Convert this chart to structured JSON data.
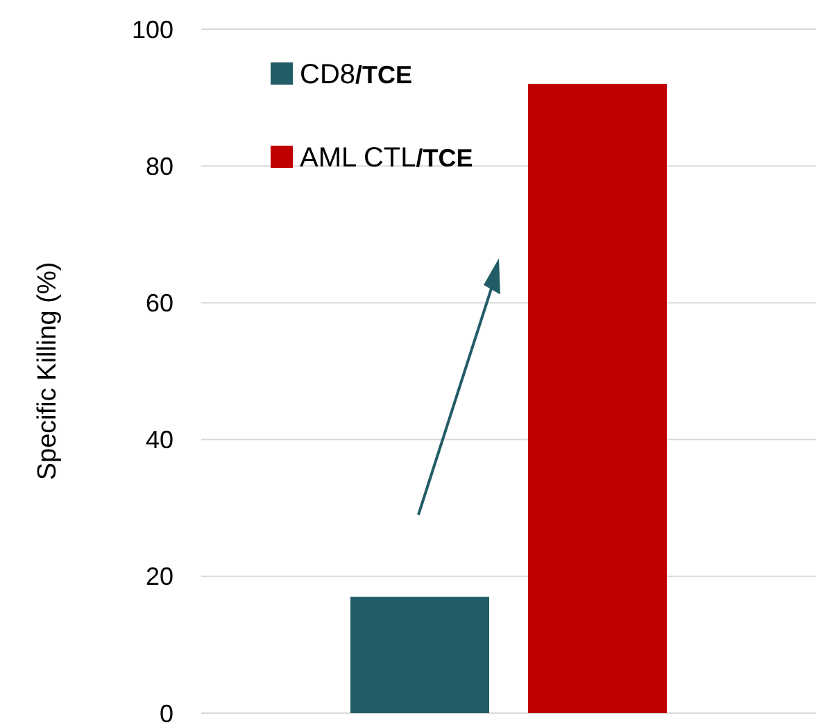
{
  "chart_data": {
    "type": "bar",
    "ylabel": "Specific Killing (%)",
    "categories": [
      null
    ],
    "series": [
      {
        "name": "CD8/TCE",
        "color": "#225c66",
        "values": [
          17
        ]
      },
      {
        "name": "AML CTL/TCE",
        "color": "#c00000",
        "values": [
          92
        ]
      }
    ],
    "ylim": [
      0,
      100
    ],
    "yticks": [
      0,
      20,
      40,
      60,
      80,
      100
    ],
    "grid": "y",
    "legend": "top left"
  }
}
